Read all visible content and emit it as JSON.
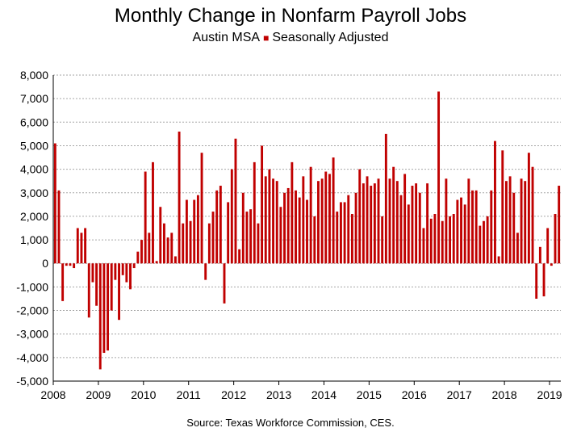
{
  "chart_data": {
    "type": "bar",
    "title": "Monthly Change in Nonfarm Payroll Jobs",
    "subtitle_parts": [
      "Austin MSA",
      "Seasonally Adjusted"
    ],
    "source": "Source: Texas Workforce Commission, CES.",
    "xlabel": "",
    "ylabel": "",
    "ylim": [
      -5000,
      8000
    ],
    "yticks": [
      8000,
      7000,
      6000,
      5000,
      4000,
      3000,
      2000,
      1000,
      0,
      -1000,
      -2000,
      -3000,
      -4000,
      -5000
    ],
    "ytick_labels": [
      "8,000",
      "7,000",
      "6,000",
      "5,000",
      "4,000",
      "3,000",
      "2,000",
      "1,000",
      "0",
      "-1,000",
      "-2,000",
      "-3,000",
      "-4,000",
      "-5,000"
    ],
    "xtick_labels": [
      "2008",
      "2009",
      "2010",
      "2011",
      "2012",
      "2013",
      "2014",
      "2015",
      "2016",
      "2017",
      "2018",
      "2019"
    ],
    "start": "2008-01",
    "grid": true,
    "bar_color": "#c00000",
    "values": [
      5100,
      3100,
      -1600,
      -100,
      -100,
      -200,
      1500,
      1300,
      1500,
      -2300,
      -800,
      -1800,
      -4500,
      -3800,
      -3700,
      -2000,
      -700,
      -2400,
      -500,
      -800,
      -1100,
      -200,
      500,
      1000,
      3900,
      1300,
      4300,
      100,
      2400,
      1700,
      1100,
      1300,
      300,
      5600,
      1700,
      2700,
      1800,
      2700,
      2900,
      4700,
      -700,
      1700,
      2200,
      3100,
      3300,
      -1700,
      2600,
      4000,
      5300,
      600,
      3000,
      2200,
      2300,
      4300,
      1700,
      5000,
      3700,
      4000,
      3600,
      3500,
      2400,
      3000,
      3200,
      4300,
      3100,
      2800,
      3700,
      2700,
      4100,
      2000,
      3500,
      3600,
      3900,
      3800,
      4500,
      2200,
      2600,
      2600,
      2900,
      2100,
      3000,
      4000,
      3400,
      3700,
      3300,
      3400,
      3600,
      2000,
      5500,
      3600,
      4100,
      3500,
      2900,
      3800,
      2500,
      3300,
      3400,
      3000,
      1500,
      3400,
      1900,
      2100,
      7300,
      1800,
      3600,
      2000,
      2100,
      2700,
      2800,
      2500,
      3600,
      3100,
      3100,
      1600,
      1800,
      2000,
      3100,
      5200,
      300,
      4800,
      3500,
      3700,
      3000,
      1300,
      3600,
      3500,
      4700,
      4100,
      -1500,
      700,
      -1400,
      1500,
      -100,
      2100,
      3300
    ]
  }
}
